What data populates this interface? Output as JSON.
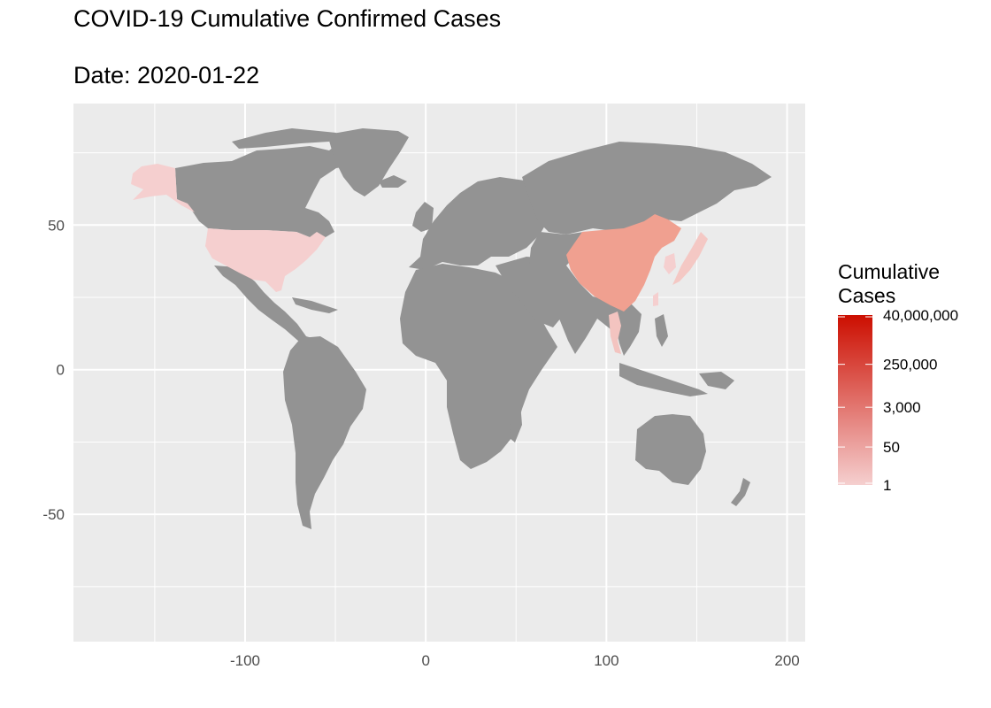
{
  "title": "COVID-19 Cumulative Confirmed Cases",
  "subtitle": "Date: 2020-01-22",
  "chart_data": {
    "type": "choropleth",
    "x_ticks": [
      -100,
      0,
      100,
      200
    ],
    "y_ticks": [
      50,
      0,
      -50
    ],
    "xlim": [
      -195,
      210
    ],
    "ylim": [
      -94,
      92
    ],
    "grid": true,
    "legend": {
      "title_line1": "Cumulative",
      "title_line2": "Cases",
      "placement": "right",
      "labels": [
        "40,000,000",
        "250,000",
        "3,000",
        "50",
        "1"
      ],
      "scale": "log",
      "color_low": "#f5cfcf",
      "color_high": "#cc0e00"
    },
    "highlighted_regions": [
      {
        "name": "United States",
        "cases": 1,
        "color": "#f5cfcf"
      },
      {
        "name": "China",
        "cases": 548,
        "color": "#f0a090"
      },
      {
        "name": "Japan",
        "cases": 2,
        "color": "#f4c8c4"
      },
      {
        "name": "South Korea",
        "cases": 1,
        "color": "#f5cfcf"
      },
      {
        "name": "Thailand",
        "cases": 4,
        "color": "#f3c4c0"
      },
      {
        "name": "Taiwan",
        "cases": 1,
        "color": "#f5cfcf"
      }
    ],
    "no_data_color": "#939393",
    "panel_color": "#ebebeb"
  }
}
